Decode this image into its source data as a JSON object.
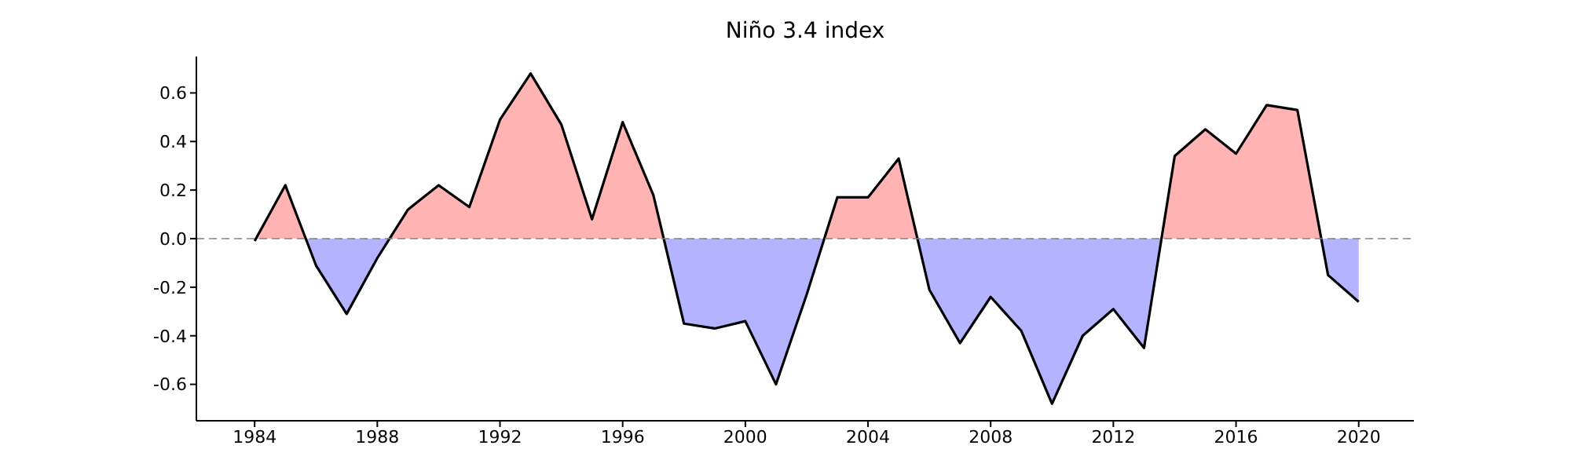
{
  "chart_data": {
    "type": "area",
    "title": "Niño 3.4 index",
    "x": [
      1984,
      1985,
      1986,
      1987,
      1988,
      1989,
      1990,
      1991,
      1992,
      1993,
      1994,
      1995,
      1996,
      1997,
      1998,
      1999,
      2000,
      2001,
      2002,
      2003,
      2004,
      2005,
      2006,
      2007,
      2008,
      2009,
      2010,
      2011,
      2012,
      2013,
      2014,
      2015,
      2016,
      2017,
      2018,
      2019,
      2020
    ],
    "series": [
      {
        "color": "#000000",
        "values": [
          -0.01,
          0.22,
          -0.11,
          -0.31,
          -0.08,
          0.12,
          0.22,
          0.13,
          0.49,
          0.68,
          0.47,
          0.08,
          0.48,
          0.18,
          -0.35,
          -0.37,
          -0.34,
          -0.6,
          -0.23,
          0.17,
          0.17,
          0.33,
          -0.21,
          -0.43,
          -0.24,
          -0.38,
          -0.68,
          -0.4,
          -0.29,
          -0.45,
          0.34,
          0.45,
          0.35,
          0.55,
          0.53,
          -0.15,
          -0.26
        ]
      }
    ],
    "xlim": [
      1982.1,
      2021.8
    ],
    "xticks": [
      1984,
      1988,
      1992,
      1996,
      2000,
      2004,
      2008,
      2012,
      2016,
      2020
    ],
    "ylim": [
      -0.75,
      0.75
    ],
    "yticks": [
      -0.6,
      -0.4,
      -0.2,
      {
        "value": 0,
        "label": "0.0"
      },
      0.2,
      0.4,
      0.6
    ],
    "ref_lines": [
      {
        "axis": "y",
        "value": 0,
        "color": "#808080",
        "line_style": "dashed"
      }
    ],
    "grid": false,
    "legend": false
  }
}
